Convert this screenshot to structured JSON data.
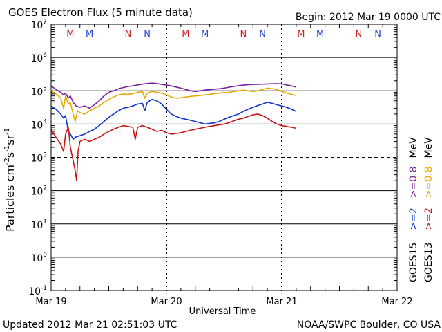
{
  "chart_data": {
    "type": "line",
    "title": "GOES Electron Flux (5 minute data)",
    "begin_label": "Begin: 2012 Mar 19 0000 UTC",
    "xlabel": "Universal Time",
    "ylabel": "Particles cm⁻²s⁻¹sr⁻¹",
    "ylabel_parts": {
      "main": "Particles cm",
      "e1": "-2",
      "mid1": "s",
      "e2": "-1",
      "mid2": "sr",
      "e3": "-1"
    },
    "x_unit": "hours since 2012-03-19 00:00 UTC",
    "xlim": [
      0,
      72
    ],
    "y_scale": "log",
    "ylim_exponents": [
      -1,
      7
    ],
    "y_tick_labels": [
      {
        "base": "10",
        "exp": "7"
      },
      {
        "base": "10",
        "exp": "6"
      },
      {
        "base": "10",
        "exp": "5"
      },
      {
        "base": "10",
        "exp": "4"
      },
      {
        "base": "10",
        "exp": "3"
      },
      {
        "base": "10",
        "exp": "2"
      },
      {
        "base": "10",
        "exp": "1"
      },
      {
        "base": "10",
        "exp": "0"
      },
      {
        "base": "10",
        "exp": "-1"
      }
    ],
    "x_ticks": [
      {
        "label": "Mar 19",
        "hour": 0
      },
      {
        "label": "Mar 20",
        "hour": 24
      },
      {
        "label": "Mar 21",
        "hour": 48
      },
      {
        "label": "Mar 22",
        "hour": 72
      }
    ],
    "threshold_exponent": 3,
    "markers": [
      {
        "label": "M",
        "hour": 4,
        "color": "#cc2222"
      },
      {
        "label": "M",
        "hour": 8,
        "color": "#2244cc"
      },
      {
        "label": "N",
        "hour": 16,
        "color": "#cc2222"
      },
      {
        "label": "N",
        "hour": 20,
        "color": "#2244cc"
      },
      {
        "label": "M",
        "hour": 28,
        "color": "#cc2222"
      },
      {
        "label": "M",
        "hour": 32,
        "color": "#2244cc"
      },
      {
        "label": "N",
        "hour": 40,
        "color": "#cc2222"
      },
      {
        "label": "N",
        "hour": 44,
        "color": "#2244cc"
      },
      {
        "label": "M",
        "hour": 52,
        "color": "#cc2222"
      },
      {
        "label": "M",
        "hour": 56,
        "color": "#2244cc"
      },
      {
        "label": "N",
        "hour": 64,
        "color": "#cc2222"
      },
      {
        "label": "N",
        "hour": 68,
        "color": "#2244cc"
      }
    ],
    "series": [
      {
        "name": "GOES15 >=0.8 MeV",
        "color": "#7a1fa0",
        "points": [
          [
            0,
            140000
          ],
          [
            1,
            110000
          ],
          [
            2,
            90000
          ],
          [
            2.6,
            75000
          ],
          [
            3,
            85000
          ],
          [
            3.6,
            60000
          ],
          [
            4,
            70000
          ],
          [
            4.6,
            45000
          ],
          [
            5.2,
            35000
          ],
          [
            6,
            32000
          ],
          [
            7,
            35000
          ],
          [
            8,
            30000
          ],
          [
            9,
            38000
          ],
          [
            10,
            50000
          ],
          [
            11,
            70000
          ],
          [
            12,
            90000
          ],
          [
            13,
            100000
          ],
          [
            14,
            115000
          ],
          [
            15,
            125000
          ],
          [
            16,
            135000
          ],
          [
            17,
            140000
          ],
          [
            18,
            150000
          ],
          [
            19,
            158000
          ],
          [
            20,
            165000
          ],
          [
            21,
            170000
          ],
          [
            22,
            165000
          ],
          [
            23,
            155000
          ],
          [
            24,
            148000
          ],
          [
            25,
            140000
          ],
          [
            26,
            130000
          ],
          [
            27,
            120000
          ],
          [
            28,
            110000
          ],
          [
            29,
            100000
          ],
          [
            30,
            95000
          ],
          [
            31,
            100000
          ],
          [
            32,
            105000
          ],
          [
            33,
            108000
          ],
          [
            34,
            112000
          ],
          [
            35,
            115000
          ],
          [
            36,
            120000
          ],
          [
            37,
            128000
          ],
          [
            38,
            135000
          ],
          [
            39,
            142000
          ],
          [
            40,
            148000
          ],
          [
            41,
            152000
          ],
          [
            42,
            155000
          ],
          [
            43,
            156000
          ],
          [
            44,
            158000
          ],
          [
            45,
            160000
          ],
          [
            46,
            162000
          ],
          [
            47,
            163000
          ],
          [
            48,
            160000
          ],
          [
            49,
            150000
          ],
          [
            50,
            140000
          ],
          [
            51,
            130000
          ]
        ]
      },
      {
        "name": "GOES13 >=0.8 MeV",
        "color": "#e8a800",
        "points": [
          [
            0,
            100000
          ],
          [
            1,
            80000
          ],
          [
            2,
            60000
          ],
          [
            2.6,
            30000
          ],
          [
            3,
            70000
          ],
          [
            3.6,
            40000
          ],
          [
            4,
            45000
          ],
          [
            4.6,
            20000
          ],
          [
            5,
            12000
          ],
          [
            5.5,
            25000
          ],
          [
            6,
            22000
          ],
          [
            7,
            20000
          ],
          [
            8,
            25000
          ],
          [
            9,
            30000
          ],
          [
            10,
            35000
          ],
          [
            11,
            45000
          ],
          [
            12,
            55000
          ],
          [
            13,
            65000
          ],
          [
            14,
            75000
          ],
          [
            15,
            80000
          ],
          [
            16,
            78000
          ],
          [
            17,
            82000
          ],
          [
            18,
            90000
          ],
          [
            19,
            95000
          ],
          [
            19.5,
            60000
          ],
          [
            20,
            85000
          ],
          [
            21,
            95000
          ],
          [
            22,
            90000
          ],
          [
            23,
            85000
          ],
          [
            24,
            75000
          ],
          [
            25,
            65000
          ],
          [
            26,
            60000
          ],
          [
            27,
            62000
          ],
          [
            28,
            65000
          ],
          [
            29,
            68000
          ],
          [
            30,
            70000
          ],
          [
            31,
            72000
          ],
          [
            32,
            75000
          ],
          [
            33,
            78000
          ],
          [
            34,
            82000
          ],
          [
            35,
            85000
          ],
          [
            36,
            88000
          ],
          [
            37,
            90000
          ],
          [
            38,
            95000
          ],
          [
            39,
            100000
          ],
          [
            40,
            105000
          ],
          [
            41,
            100000
          ],
          [
            42,
            95000
          ],
          [
            43,
            100000
          ],
          [
            44,
            110000
          ],
          [
            45,
            120000
          ],
          [
            46,
            115000
          ],
          [
            47,
            110000
          ],
          [
            48,
            95000
          ],
          [
            49,
            85000
          ],
          [
            50,
            78000
          ],
          [
            51,
            72000
          ]
        ]
      },
      {
        "name": "GOES15 >=2 MeV",
        "color": "#1133cc",
        "points": [
          [
            0,
            35000
          ],
          [
            1,
            28000
          ],
          [
            2,
            20000
          ],
          [
            2.6,
            15000
          ],
          [
            3,
            18000
          ],
          [
            3.6,
            6000
          ],
          [
            4,
            5000
          ],
          [
            4.6,
            3500
          ],
          [
            5,
            4000
          ],
          [
            6,
            4500
          ],
          [
            7,
            5000
          ],
          [
            8,
            6000
          ],
          [
            9,
            7000
          ],
          [
            10,
            9000
          ],
          [
            11,
            12000
          ],
          [
            12,
            16000
          ],
          [
            13,
            20000
          ],
          [
            14,
            25000
          ],
          [
            15,
            30000
          ],
          [
            16,
            32000
          ],
          [
            17,
            35000
          ],
          [
            18,
            40000
          ],
          [
            19,
            42000
          ],
          [
            19.5,
            25000
          ],
          [
            20,
            45000
          ],
          [
            21,
            55000
          ],
          [
            22,
            50000
          ],
          [
            23,
            40000
          ],
          [
            24,
            28000
          ],
          [
            25,
            20000
          ],
          [
            26,
            17000
          ],
          [
            27,
            15000
          ],
          [
            28,
            14000
          ],
          [
            29,
            13000
          ],
          [
            30,
            12000
          ],
          [
            31,
            11000
          ],
          [
            32,
            10000
          ],
          [
            33,
            10500
          ],
          [
            34,
            11000
          ],
          [
            35,
            12000
          ],
          [
            36,
            14000
          ],
          [
            37,
            16000
          ],
          [
            38,
            18000
          ],
          [
            39,
            20000
          ],
          [
            40,
            24000
          ],
          [
            41,
            28000
          ],
          [
            42,
            32000
          ],
          [
            43,
            36000
          ],
          [
            44,
            40000
          ],
          [
            45,
            45000
          ],
          [
            46,
            42000
          ],
          [
            47,
            38000
          ],
          [
            48,
            35000
          ],
          [
            49,
            32000
          ],
          [
            50,
            28000
          ],
          [
            51,
            24000
          ]
        ]
      },
      {
        "name": "GOES13 >=2 MeV",
        "color": "#cc1111",
        "points": [
          [
            0,
            7000
          ],
          [
            1,
            4000
          ],
          [
            2,
            2500
          ],
          [
            2.6,
            1500
          ],
          [
            3,
            5000
          ],
          [
            3.6,
            8000
          ],
          [
            4,
            2000
          ],
          [
            4.6,
            800
          ],
          [
            5,
            400
          ],
          [
            5.3,
            200
          ],
          [
            5.6,
            1500
          ],
          [
            6,
            3000
          ],
          [
            7,
            3500
          ],
          [
            8,
            3000
          ],
          [
            9,
            3500
          ],
          [
            10,
            4000
          ],
          [
            11,
            5000
          ],
          [
            12,
            6000
          ],
          [
            13,
            7000
          ],
          [
            14,
            8000
          ],
          [
            15,
            9000
          ],
          [
            16,
            8500
          ],
          [
            17,
            8000
          ],
          [
            17.5,
            3500
          ],
          [
            18,
            8000
          ],
          [
            19,
            9000
          ],
          [
            20,
            8000
          ],
          [
            21,
            7000
          ],
          [
            22,
            6000
          ],
          [
            23,
            6500
          ],
          [
            24,
            5500
          ],
          [
            25,
            5000
          ],
          [
            26,
            5200
          ],
          [
            27,
            5500
          ],
          [
            28,
            6000
          ],
          [
            29,
            6500
          ],
          [
            30,
            7000
          ],
          [
            31,
            7500
          ],
          [
            32,
            8000
          ],
          [
            33,
            8500
          ],
          [
            34,
            9000
          ],
          [
            35,
            9500
          ],
          [
            36,
            10000
          ],
          [
            37,
            11000
          ],
          [
            38,
            12500
          ],
          [
            39,
            14000
          ],
          [
            40,
            15000
          ],
          [
            41,
            17000
          ],
          [
            42,
            19000
          ],
          [
            43,
            20000
          ],
          [
            44,
            18000
          ],
          [
            45,
            15000
          ],
          [
            46,
            12000
          ],
          [
            47,
            10000
          ],
          [
            48,
            9000
          ],
          [
            49,
            8500
          ],
          [
            50,
            8000
          ],
          [
            51,
            7500
          ]
        ]
      }
    ],
    "legend": {
      "columns": [
        {
          "label": "GOES15",
          "entries": [
            {
              "label": ">=2",
              "color": "#1133cc"
            },
            {
              "label": ">=0.8",
              "color": "#7a1fa0"
            }
          ]
        },
        {
          "label": "GOES13",
          "entries": [
            {
              "label": ">=2",
              "color": "#cc1111"
            },
            {
              "label": ">=0.8",
              "color": "#e8a800"
            }
          ]
        }
      ],
      "unit": "MeV"
    }
  },
  "footer": {
    "updated": "Updated 2012 Mar 21 02:51:03 UTC",
    "credit": "NOAA/SWPC Boulder, CO USA"
  }
}
